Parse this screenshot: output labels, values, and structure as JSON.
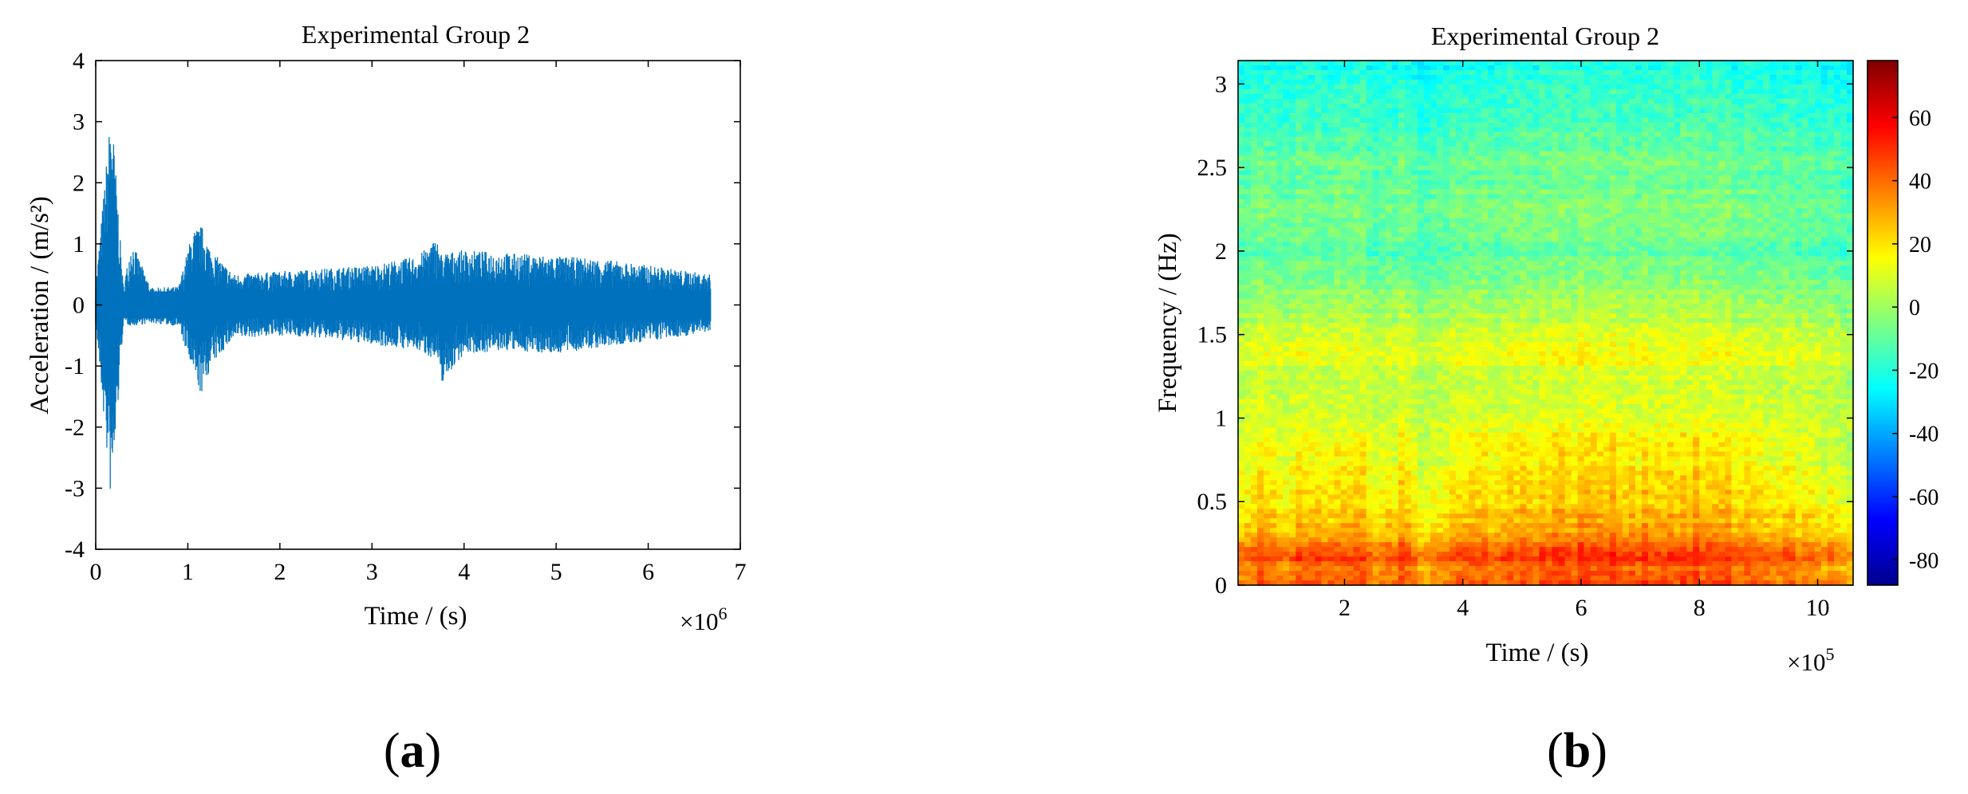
{
  "figure": {
    "panel_a_label": "(a)",
    "panel_b_label": "(b)"
  },
  "chart_data": [
    {
      "type": "line",
      "title": "Experimental Group 2",
      "xlabel": "Time / (s)",
      "ylabel": "Acceleration / (m/s²)",
      "x_multiplier": "×10^6",
      "x_multiplier_base": "×10",
      "x_multiplier_exp": "6",
      "xlim": [
        0,
        7
      ],
      "ylim": [
        -4,
        4
      ],
      "xticks": [
        0,
        1,
        2,
        3,
        4,
        5,
        6,
        7
      ],
      "yticks": [
        -4,
        -3,
        -2,
        -1,
        0,
        1,
        2,
        3,
        4
      ],
      "series_color": "#0072BD",
      "x_range": [
        0,
        6.68
      ],
      "envelope": [
        {
          "x": 0.0,
          "max": 0.32,
          "min": -0.3
        },
        {
          "x": 0.17,
          "max": 3.28,
          "min": -3.32
        },
        {
          "x": 0.3,
          "max": 0.3,
          "min": -0.3
        },
        {
          "x": 0.39,
          "max": 1.05,
          "min": -0.35
        },
        {
          "x": 0.6,
          "max": 0.28,
          "min": -0.3
        },
        {
          "x": 0.9,
          "max": 0.3,
          "min": -0.35
        },
        {
          "x": 1.05,
          "max": 1.2,
          "min": -1.1
        },
        {
          "x": 1.15,
          "max": 1.3,
          "min": -1.5
        },
        {
          "x": 1.25,
          "max": 0.9,
          "min": -1.0
        },
        {
          "x": 1.5,
          "max": 0.5,
          "min": -0.55
        },
        {
          "x": 2.0,
          "max": 0.55,
          "min": -0.5
        },
        {
          "x": 2.5,
          "max": 0.6,
          "min": -0.55
        },
        {
          "x": 3.0,
          "max": 0.65,
          "min": -0.65
        },
        {
          "x": 3.5,
          "max": 0.8,
          "min": -0.75
        },
        {
          "x": 3.7,
          "max": 1.1,
          "min": -0.9
        },
        {
          "x": 3.75,
          "max": 0.85,
          "min": -1.3
        },
        {
          "x": 4.0,
          "max": 0.9,
          "min": -0.8
        },
        {
          "x": 4.5,
          "max": 0.85,
          "min": -0.75
        },
        {
          "x": 5.0,
          "max": 0.8,
          "min": -0.8
        },
        {
          "x": 5.5,
          "max": 0.75,
          "min": -0.7
        },
        {
          "x": 6.0,
          "max": 0.65,
          "min": -0.6
        },
        {
          "x": 6.68,
          "max": 0.5,
          "min": -0.45
        }
      ]
    },
    {
      "type": "heatmap",
      "title": "Experimental Group 2",
      "xlabel": "Time / (s)",
      "ylabel": "Frequency / (Hz)",
      "x_multiplier": "×10^5",
      "x_multiplier_base": "×10",
      "x_multiplier_exp": "5",
      "xlim": [
        0.2,
        10.6
      ],
      "ylim": [
        0,
        3.14
      ],
      "xticks": [
        2,
        4,
        6,
        8,
        10
      ],
      "yticks": [
        0,
        0.5,
        1,
        1.5,
        2,
        2.5,
        3
      ],
      "colorbar": {
        "range": [
          -88,
          78
        ],
        "ticks": [
          -80,
          -60,
          -40,
          -20,
          0,
          20,
          40,
          60
        ],
        "colormap": "jet"
      },
      "frequency_profile": [
        {
          "f": 0.0,
          "level": 38
        },
        {
          "f": 0.1,
          "level": 36
        },
        {
          "f": 0.17,
          "level": 45
        },
        {
          "f": 0.3,
          "level": 26
        },
        {
          "f": 0.5,
          "level": 18
        },
        {
          "f": 0.8,
          "level": 12
        },
        {
          "f": 1.0,
          "level": 8
        },
        {
          "f": 1.3,
          "level": 6
        },
        {
          "f": 1.35,
          "level": 12
        },
        {
          "f": 1.5,
          "level": 6
        },
        {
          "f": 1.6,
          "level": 2
        },
        {
          "f": 2.0,
          "level": -12
        },
        {
          "f": 2.25,
          "level": -8
        },
        {
          "f": 2.5,
          "level": -10
        },
        {
          "f": 2.8,
          "level": -18
        },
        {
          "f": 3.14,
          "level": -24
        }
      ],
      "time_profile": [
        {
          "t": 0.2,
          "gain": -2
        },
        {
          "t": 0.6,
          "gain": 6
        },
        {
          "t": 1.0,
          "gain": -4
        },
        {
          "t": 1.3,
          "gain": 4
        },
        {
          "t": 2.0,
          "gain": 0
        },
        {
          "t": 2.2,
          "gain": 6
        },
        {
          "t": 2.5,
          "gain": -4
        },
        {
          "t": 3.0,
          "gain": 3
        },
        {
          "t": 3.3,
          "gain": -4
        },
        {
          "t": 4.0,
          "gain": 2
        },
        {
          "t": 6.0,
          "gain": 6
        },
        {
          "t": 8.0,
          "gain": 5
        },
        {
          "t": 9.0,
          "gain": 2
        },
        {
          "t": 10.0,
          "gain": -2
        },
        {
          "t": 10.6,
          "gain": -6
        }
      ]
    }
  ]
}
